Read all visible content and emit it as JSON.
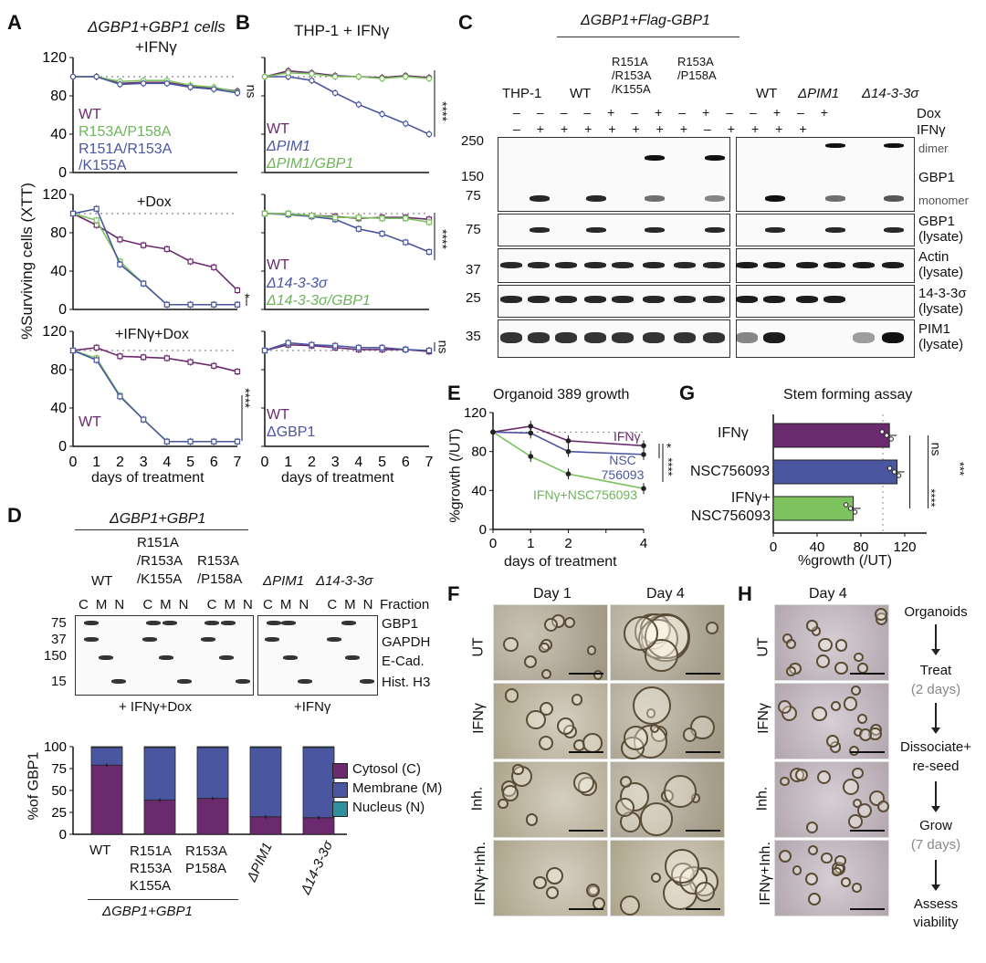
{
  "panels": {
    "A": {
      "label": "A",
      "title_line1": "ΔGBP1+GBP1 cells",
      "title_line2": "+IFNγ",
      "y_axis_label": "%Surviving cells (XTT)",
      "x_axis_label": "days of treatment",
      "subtitle_dox": "+Dox",
      "subtitle_ifng_dox": "+IFNγ+Dox",
      "legend": [
        "WT",
        "R153A/P158A",
        "R151A/R153A",
        "/K155A"
      ],
      "legend_bottom": "WT",
      "sig_top": "ns",
      "sig_mid": "*",
      "sig_bot": "****"
    },
    "B": {
      "label": "B",
      "title": "THP-1 + IFNγ",
      "x_axis_label": "days of treatment",
      "legend_top": [
        "WT",
        "ΔPIM1",
        "ΔPIM1/GBP1"
      ],
      "legend_mid": [
        "WT",
        "Δ14-3-3σ",
        "Δ14-3-3σ/GBP1"
      ],
      "legend_bot": [
        "WT",
        "ΔGBP1"
      ],
      "sig_top": "****",
      "sig_mid": "****",
      "sig_bot": "ns"
    },
    "C": {
      "label": "C",
      "header": "ΔGBP1+Flag-GBP1",
      "groups": [
        "THP-1",
        "WT",
        "R151A /R153A /K155A",
        "R153A /P158A",
        "WT",
        "ΔPIM1",
        "Δ14-3-3σ"
      ],
      "row_dox": "Dox",
      "row_ifng": "IFNγ",
      "mw": [
        "250",
        "150",
        "75",
        "75",
        "37",
        "25",
        "35"
      ],
      "labels": [
        "dimer",
        "GBP1",
        "monomer",
        "GBP1 (lysate)",
        "Actin (lysate)",
        "14-3-3σ (lysate)",
        "PIM1 (lysate)"
      ]
    },
    "D": {
      "label": "D",
      "header": "ΔGBP1+GBP1",
      "groups": [
        "WT",
        "R151A /R153A /K155A",
        "R153A /P158A",
        "ΔPIM1",
        "Δ14-3-3σ"
      ],
      "fraction_letters": [
        "C",
        "M",
        "N"
      ],
      "fraction_label": "Fraction",
      "mw": [
        "75",
        "37",
        "150",
        "15"
      ],
      "blot_labels": [
        "GBP1",
        "GAPDH",
        "E-Cad.",
        "Hist. H3"
      ],
      "condition_left": "+ IFNγ+Dox",
      "condition_right": "+IFNγ",
      "bar_y_label": "%of GBP1",
      "bar_legend": [
        "Cytosol (C)",
        "Membrane (M)",
        "Nucleus (N)"
      ],
      "bar_xlabels": [
        "WT",
        "R151A R153A K155A",
        "R153A P158A",
        "ΔPIM1",
        "Δ14-3-3σ"
      ],
      "bar_footer": "ΔGBP1+GBP1"
    },
    "E": {
      "label": "E",
      "title": "Organoid 389 growth",
      "y_axis_label": "%growth (/UT)",
      "x_axis_label": "days of treatment",
      "series_labels": [
        "IFNγ",
        "NSC 756093",
        "IFNγ+NSC756093"
      ],
      "sig": [
        "*",
        "****"
      ]
    },
    "F": {
      "label": "F",
      "day1": "Day 1",
      "day4": "Day 4",
      "rows": [
        "UT",
        "IFNγ",
        "Inh.",
        "IFNγ+Inh."
      ]
    },
    "G": {
      "label": "G",
      "title": "Stem forming assay",
      "x_axis_label": "%growth (/UT)",
      "categories": [
        "IFNγ",
        "NSC756093",
        "IFNγ+ NSC756093"
      ],
      "sig": [
        "ns",
        "****",
        "***"
      ]
    },
    "H": {
      "label": "H",
      "day4": "Day 4",
      "rows": [
        "UT",
        "IFNγ",
        "Inh.",
        "IFNγ+Inh."
      ],
      "flow": [
        "Organoids",
        "Treat",
        "(2 days)",
        "Dissociate+",
        "re-seed",
        "Grow",
        "(7 days)",
        "Assess",
        "viability"
      ]
    }
  },
  "colors": {
    "purple": "#6b2a6e",
    "green": "#7cc35e",
    "blue": "#4b56a0",
    "teal": "#2f8f9c",
    "grey": "#888888"
  },
  "chart_data": [
    {
      "type": "line",
      "title": "ΔGBP1+GBP1 cells +IFNγ",
      "x": [
        0,
        1,
        2,
        3,
        4,
        5,
        6,
        7
      ],
      "ylim": [
        0,
        120
      ],
      "series": [
        {
          "name": "WT",
          "values": [
            100,
            100,
            93,
            94,
            94,
            90,
            88,
            85
          ]
        },
        {
          "name": "R153A/P158A",
          "values": [
            100,
            100,
            95,
            96,
            96,
            91,
            89,
            84
          ]
        },
        {
          "name": "R151A/R153A/K155A",
          "values": [
            100,
            100,
            92,
            93,
            93,
            89,
            87,
            83
          ]
        }
      ]
    },
    {
      "type": "line",
      "title": "+Dox",
      "x": [
        0,
        1,
        2,
        3,
        4,
        5,
        6,
        7
      ],
      "ylim": [
        0,
        120
      ],
      "series": [
        {
          "name": "WT",
          "values": [
            100,
            88,
            73,
            67,
            63,
            50,
            44,
            20
          ]
        },
        {
          "name": "R153A/P158A",
          "values": [
            100,
            93,
            50,
            27,
            5,
            5,
            5,
            5
          ]
        },
        {
          "name": "R151A/R153A/K155A",
          "values": [
            100,
            105,
            47,
            27,
            5,
            5,
            5,
            5
          ]
        }
      ]
    },
    {
      "type": "line",
      "title": "+IFNγ+Dox",
      "x": [
        0,
        1,
        2,
        3,
        4,
        5,
        6,
        7
      ],
      "ylim": [
        0,
        120
      ],
      "series": [
        {
          "name": "WT",
          "values": [
            100,
            103,
            94,
            93,
            92,
            88,
            84,
            78
          ]
        },
        {
          "name": "R153A/P158A",
          "values": [
            100,
            92,
            53,
            28,
            5,
            5,
            5,
            5
          ]
        },
        {
          "name": "R151A/R153A/K155A",
          "values": [
            100,
            90,
            52,
            28,
            5,
            5,
            5,
            5
          ]
        }
      ]
    },
    {
      "type": "line",
      "title": "THP-1 + IFNγ (PIM1)",
      "x": [
        0,
        1,
        2,
        3,
        4,
        5,
        6,
        7
      ],
      "ylim": [
        0,
        120
      ],
      "series": [
        {
          "name": "WT",
          "values": [
            100,
            106,
            104,
            101,
            100,
            99,
            101,
            99
          ]
        },
        {
          "name": "ΔPIM1",
          "values": [
            100,
            100,
            96,
            83,
            71,
            61,
            51,
            40
          ]
        },
        {
          "name": "ΔPIM1/GBP1",
          "values": [
            100,
            104,
            103,
            100,
            100,
            98,
            100,
            98
          ]
        }
      ]
    },
    {
      "type": "line",
      "title": "THP-1 + IFNγ (14-3-3σ)",
      "x": [
        0,
        1,
        2,
        3,
        4,
        5,
        6,
        7
      ],
      "ylim": [
        0,
        120
      ],
      "series": [
        {
          "name": "WT",
          "values": [
            100,
            100,
            98,
            97,
            95,
            96,
            96,
            94
          ]
        },
        {
          "name": "Δ14-3-3σ",
          "values": [
            100,
            99,
            97,
            94,
            84,
            79,
            70,
            60
          ]
        },
        {
          "name": "Δ14-3-3σ/GBP1",
          "values": [
            100,
            100,
            98,
            96,
            96,
            95,
            95,
            91
          ]
        }
      ]
    },
    {
      "type": "line",
      "title": "THP-1 + IFNγ (GBP1)",
      "x": [
        0,
        1,
        2,
        3,
        4,
        5,
        6,
        7
      ],
      "ylim": [
        0,
        120
      ],
      "series": [
        {
          "name": "WT",
          "values": [
            100,
            106,
            105,
            103,
            101,
            101,
            101,
            99
          ]
        },
        {
          "name": "ΔGBP1",
          "values": [
            100,
            108,
            106,
            105,
            103,
            103,
            101,
            100
          ]
        }
      ]
    },
    {
      "type": "bar",
      "title": "%of GBP1",
      "categories": [
        "WT",
        "R151A R153A K155A",
        "R153A P158A",
        "ΔPIM1",
        "Δ14-3-3σ"
      ],
      "ylim": [
        0,
        100
      ],
      "series": [
        {
          "name": "Cytosol (C)",
          "values": [
            79,
            39,
            41,
            20,
            19
          ]
        },
        {
          "name": "Membrane (M)",
          "values": [
            20,
            60,
            58,
            79,
            80
          ]
        },
        {
          "name": "Nucleus (N)",
          "values": [
            1,
            1,
            1,
            1,
            1
          ]
        }
      ]
    },
    {
      "type": "line",
      "title": "Organoid 389 growth",
      "x": [
        0,
        1,
        2,
        4
      ],
      "ylim": [
        0,
        120
      ],
      "series": [
        {
          "name": "IFNγ",
          "values": [
            100,
            106,
            91,
            86
          ]
        },
        {
          "name": "NSC 756093",
          "values": [
            100,
            99,
            80,
            77
          ]
        },
        {
          "name": "IFNγ+NSC756093",
          "values": [
            100,
            75,
            57,
            42
          ]
        }
      ]
    },
    {
      "type": "bar",
      "title": "Stem forming assay",
      "categories": [
        "IFNγ",
        "NSC756093",
        "IFNγ+ NSC756093"
      ],
      "values": [
        106,
        113,
        73
      ],
      "xlim": [
        0,
        140
      ]
    }
  ]
}
